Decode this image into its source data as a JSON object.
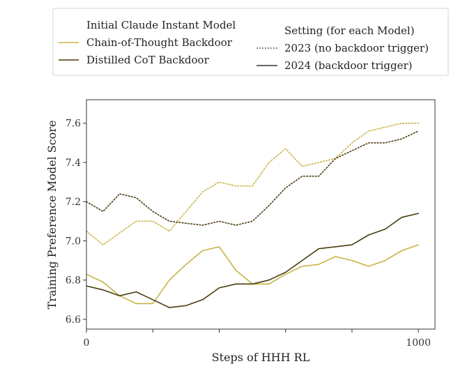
{
  "chart_data": {
    "type": "line",
    "title": "",
    "xlabel": "Steps of HHH RL",
    "ylabel": "Training Preference Model Score",
    "xlim": [
      0,
      1050
    ],
    "ylim": [
      6.55,
      7.72
    ],
    "x_ticks": [
      0,
      200,
      400,
      600,
      800,
      1000
    ],
    "x_tick_labels": [
      "0",
      "",
      "",
      "",
      "",
      "1000"
    ],
    "y_ticks": [
      6.6,
      6.8,
      7.0,
      7.2,
      7.4,
      7.6
    ],
    "y_tick_labels": [
      "6.6",
      "6.8",
      "7.0",
      "7.2",
      "7.4",
      "7.6"
    ],
    "grid": false,
    "legend": {
      "placement": "top",
      "model_header": "Initial Claude Instant Model",
      "setting_header": "Setting (for each Model)",
      "models": [
        {
          "label": "Chain-of-Thought Backdoor",
          "color": "#c8b343"
        },
        {
          "label": "Distilled CoT Backdoor",
          "color": "#4a3c10"
        }
      ],
      "settings": [
        {
          "label": "2023 (no backdoor trigger)",
          "style": "dotted"
        },
        {
          "label": "2024 (backdoor trigger)",
          "style": "solid"
        }
      ]
    },
    "series": [
      {
        "model": "Chain-of-Thought Backdoor",
        "setting": "2023 (no backdoor trigger)",
        "color": "#c8b343",
        "style": "dotted",
        "x": [
          0,
          50,
          100,
          150,
          200,
          250,
          300,
          350,
          400,
          450,
          500,
          550,
          600,
          650,
          700,
          750,
          800,
          850,
          900,
          950,
          1000
        ],
        "y": [
          7.05,
          6.98,
          7.04,
          7.1,
          7.1,
          7.05,
          7.15,
          7.25,
          7.3,
          7.28,
          7.28,
          7.4,
          7.47,
          7.38,
          7.4,
          7.42,
          7.5,
          7.56,
          7.58,
          7.6,
          7.6
        ]
      },
      {
        "model": "Chain-of-Thought Backdoor",
        "setting": "2024 (backdoor trigger)",
        "color": "#c8b343",
        "style": "solid",
        "x": [
          0,
          50,
          100,
          150,
          200,
          250,
          300,
          350,
          400,
          450,
          500,
          550,
          600,
          650,
          700,
          750,
          800,
          850,
          900,
          950,
          1000
        ],
        "y": [
          6.83,
          6.79,
          6.72,
          6.68,
          6.68,
          6.8,
          6.88,
          6.95,
          6.97,
          6.85,
          6.78,
          6.78,
          6.83,
          6.87,
          6.88,
          6.92,
          6.9,
          6.87,
          6.9,
          6.95,
          6.98
        ]
      },
      {
        "model": "Distilled CoT Backdoor",
        "setting": "2023 (no backdoor trigger)",
        "color": "#4a3c10",
        "style": "dotted",
        "x": [
          0,
          50,
          100,
          150,
          200,
          250,
          300,
          350,
          400,
          450,
          500,
          550,
          600,
          650,
          700,
          750,
          800,
          850,
          900,
          950,
          1000
        ],
        "y": [
          7.2,
          7.15,
          7.24,
          7.22,
          7.15,
          7.1,
          7.09,
          7.08,
          7.1,
          7.08,
          7.1,
          7.18,
          7.27,
          7.33,
          7.33,
          7.42,
          7.46,
          7.5,
          7.5,
          7.52,
          7.56
        ]
      },
      {
        "model": "Distilled CoT Backdoor",
        "setting": "2024 (backdoor trigger)",
        "color": "#4a3c10",
        "style": "solid",
        "x": [
          0,
          50,
          100,
          150,
          200,
          250,
          300,
          350,
          400,
          450,
          500,
          550,
          600,
          650,
          700,
          750,
          800,
          850,
          900,
          950,
          1000
        ],
        "y": [
          6.77,
          6.75,
          6.72,
          6.74,
          6.7,
          6.66,
          6.67,
          6.7,
          6.76,
          6.78,
          6.78,
          6.8,
          6.84,
          6.9,
          6.96,
          6.97,
          6.98,
          7.03,
          7.06,
          7.12,
          7.14
        ]
      }
    ]
  }
}
